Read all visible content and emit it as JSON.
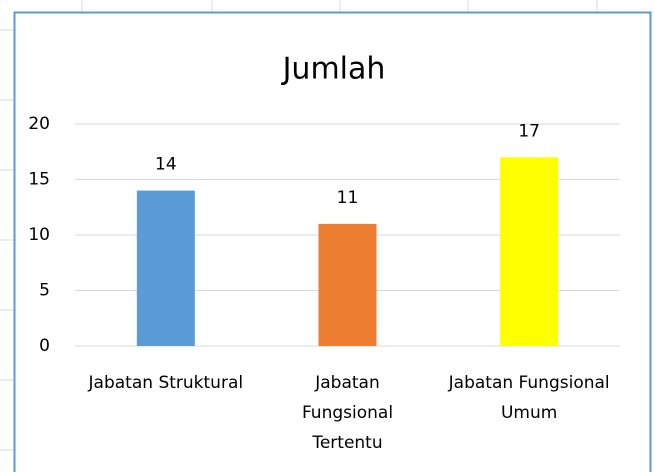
{
  "chart_data": {
    "type": "bar",
    "title": "Jumlah",
    "categories": [
      "Jabatan Struktural",
      "Jabatan Fungsional Tertentu",
      "Jabatan Fungsional Umum"
    ],
    "values": [
      14,
      11,
      17
    ],
    "colors": [
      "#5b9bd5",
      "#ed7d31",
      "#ffff00"
    ],
    "ylim": [
      0,
      20
    ],
    "yticks": [
      0,
      5,
      10,
      15,
      20
    ],
    "grid": true
  }
}
